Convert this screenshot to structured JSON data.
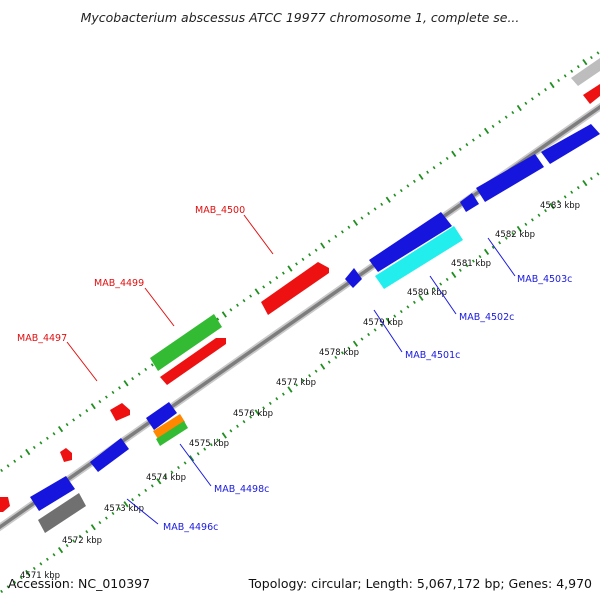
{
  "title": "Mycobacterium abscessus ATCC 19977 chromosome 1, complete se...",
  "footer": {
    "accession": "Accession: NC_010397",
    "summary": "Topology: circular; Length: 5,067,172 bp; Genes: 4,970"
  },
  "colors": {
    "backbone": "#808080",
    "tick": "#1f8f1f",
    "label_red": "#e01010",
    "label_blue": "#1a1ae0",
    "red_feature": "#ee1111",
    "blue_feature": "#1515dd",
    "green_feature": "#33bb33",
    "cyan_feature": "#22eeee",
    "gray_feature": "#707070",
    "light_gray_feature": "#bdbdbd",
    "orange_feature": "#ff8800"
  },
  "scale_labels": [
    "4571 kbp",
    "4572 kbp",
    "4573 kbp",
    "4574 kbp",
    "4575 kbp",
    "4576 kbp",
    "4577 kbp",
    "4578 kbp",
    "4579 kbp",
    "4580 kbp",
    "4581 kbp",
    "4582 kbp",
    "4583 kbp"
  ],
  "gene_labels": [
    {
      "text": "MAB_4497",
      "color": "red"
    },
    {
      "text": "MAB_4499",
      "color": "red"
    },
    {
      "text": "MAB_4500",
      "color": "red"
    },
    {
      "text": "MAB_4496c",
      "color": "blue"
    },
    {
      "text": "MAB_4498c",
      "color": "blue"
    },
    {
      "text": "MAB_4501c",
      "color": "blue"
    },
    {
      "text": "MAB_4502c",
      "color": "blue"
    },
    {
      "text": "MAB_4503c",
      "color": "blue"
    }
  ]
}
